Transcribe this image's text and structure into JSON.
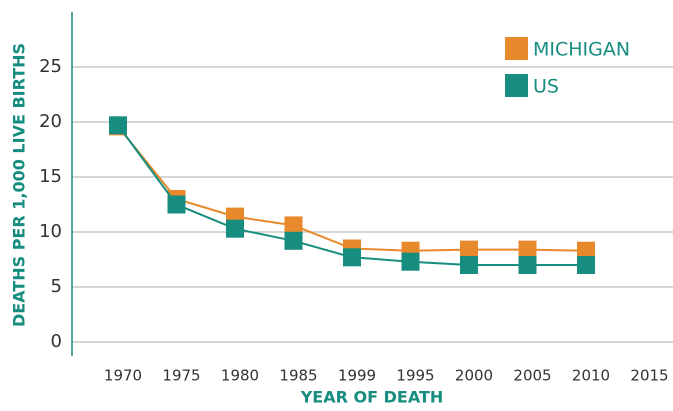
{
  "chart_data": {
    "type": "line",
    "categories": [
      "1970",
      "1975",
      "1980",
      "1985",
      "1999",
      "1995",
      "2000",
      "2005",
      "2010",
      "2015"
    ],
    "series": [
      {
        "name": "MICHIGAN",
        "color": "#e8892c",
        "values": [
          19.6,
          13.0,
          11.4,
          10.6,
          8.5,
          8.3,
          8.4,
          8.4,
          8.3,
          null
        ]
      },
      {
        "name": "US",
        "color": "#168d7f",
        "values": [
          19.7,
          12.5,
          10.3,
          9.2,
          7.7,
          7.3,
          7.0,
          7.0,
          7.0,
          null
        ]
      }
    ],
    "xlabel": "YEAR OF DEATH",
    "ylabel": "DEATHS PER 1,000 LIVE BIRTHS",
    "ylim": [
      0,
      30
    ],
    "yticks": [
      0,
      5,
      10,
      15,
      20,
      25
    ],
    "grid": true,
    "legend": "upper right"
  }
}
